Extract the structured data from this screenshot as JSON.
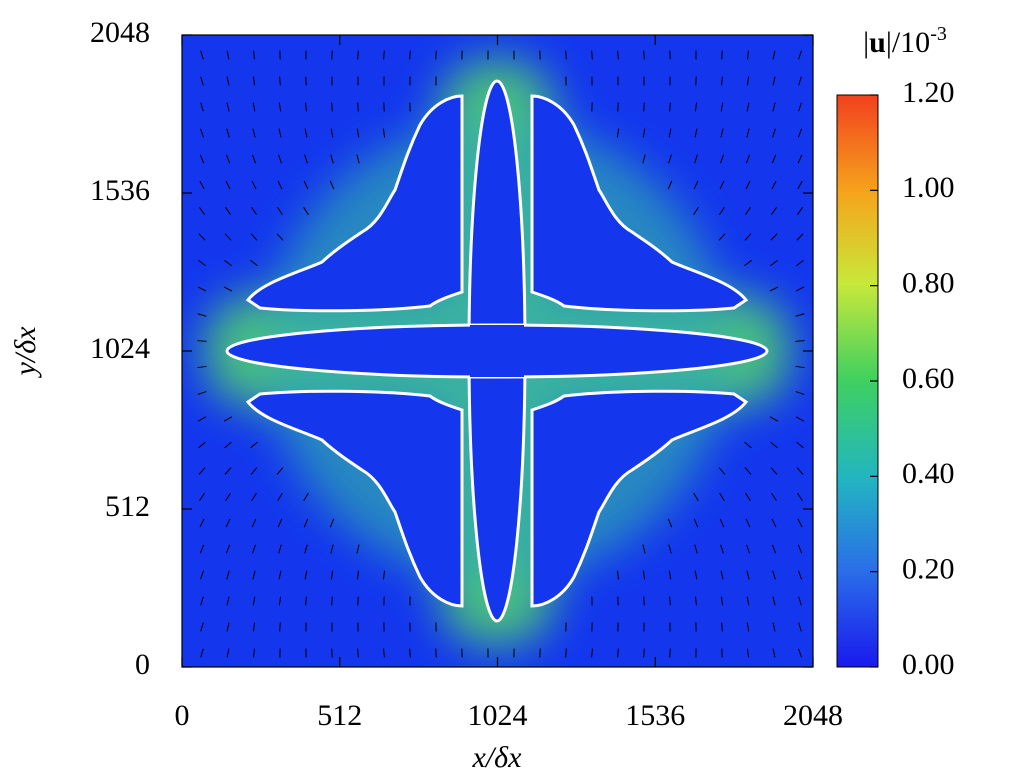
{
  "chart_data": {
    "type": "heatmap",
    "xlabel": "x/δx",
    "ylabel": "y/δx",
    "xlim": [
      0,
      2048
    ],
    "ylim": [
      0,
      2048
    ],
    "xticks": [
      0,
      512,
      1024,
      1536,
      2048
    ],
    "yticks": [
      0,
      512,
      1024,
      1536,
      2048
    ],
    "colorbar_label": {
      "open": "|",
      "symbol": "u",
      "close": "|/10",
      "exponent": "-3"
    },
    "colormap": "jet",
    "clim": [
      0,
      1.2
    ],
    "cticks": [
      {
        "value": 0,
        "label": "0.00"
      },
      {
        "value": 0.2,
        "label": "0.20"
      },
      {
        "value": 0.4,
        "label": "0.40"
      },
      {
        "value": 0.6,
        "label": "0.60"
      },
      {
        "value": 0.8,
        "label": "0.80"
      },
      {
        "value": 1.0,
        "label": "1.00"
      },
      {
        "value": 1.2,
        "label": "1.20"
      }
    ]
  }
}
